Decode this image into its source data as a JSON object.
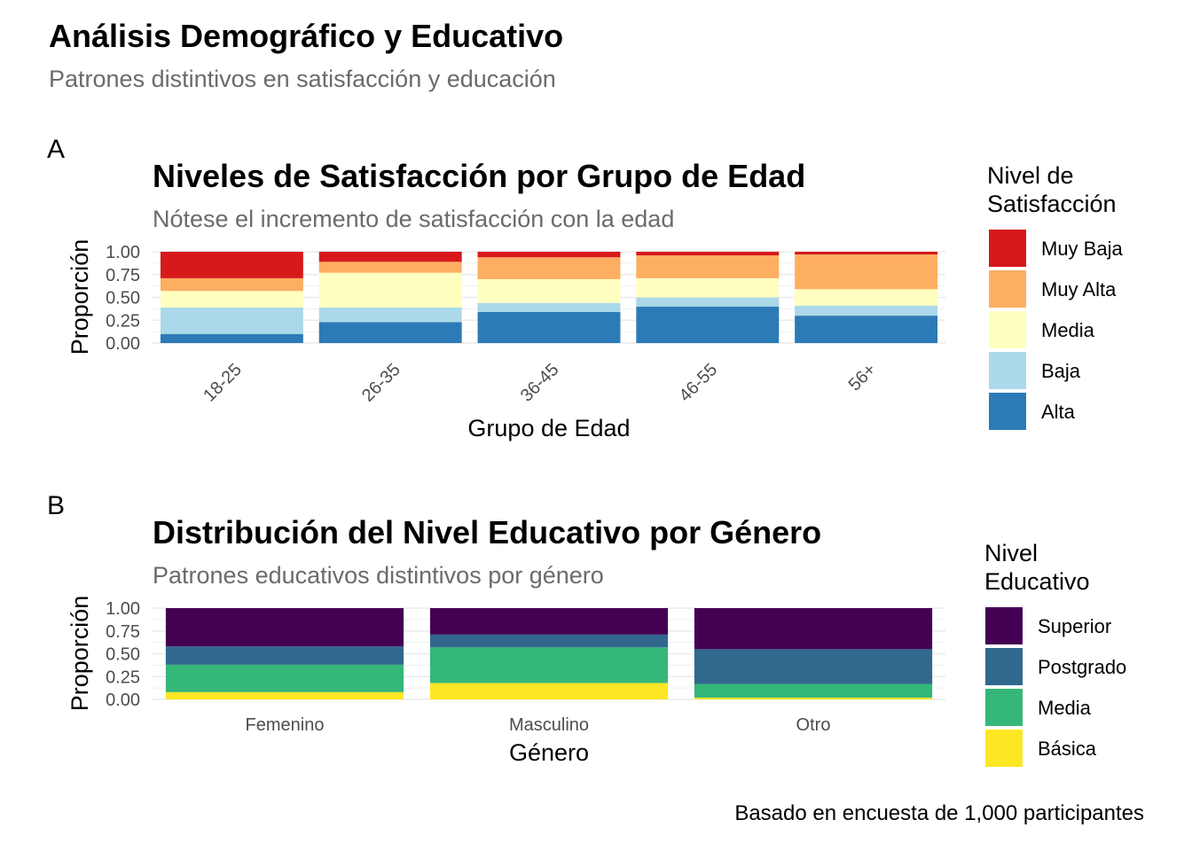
{
  "title": "Análisis Demográfico y Educativo",
  "subtitle": "Patrones distintivos en satisfacción y educación",
  "caption": "Basado en encuesta de 1,000 participantes",
  "chart_data": [
    {
      "type": "bar",
      "stacked": true,
      "tag": "A",
      "title": "Niveles de Satisfacción por Grupo de Edad",
      "subtitle": "Nótese el incremento de satisfacción con la edad",
      "xlabel": "Grupo de Edad",
      "ylabel": "Proporción",
      "ylim": [
        0,
        1
      ],
      "yticks": [
        "0.00",
        "0.25",
        "0.50",
        "0.75",
        "1.00"
      ],
      "categories": [
        "18-25",
        "26-35",
        "36-45",
        "46-55",
        "56+"
      ],
      "legend_title": "Nivel de Satisfacción",
      "legend_position": "right",
      "series": [
        {
          "name": "Alta",
          "color": "#2c7bb6",
          "values": [
            0.1,
            0.23,
            0.34,
            0.4,
            0.3
          ]
        },
        {
          "name": "Baja",
          "color": "#abd9e9",
          "values": [
            0.29,
            0.16,
            0.1,
            0.1,
            0.11
          ]
        },
        {
          "name": "Media",
          "color": "#ffffbf",
          "values": [
            0.18,
            0.38,
            0.26,
            0.21,
            0.18
          ]
        },
        {
          "name": "Muy Alta",
          "color": "#fdae61",
          "values": [
            0.14,
            0.12,
            0.24,
            0.25,
            0.38
          ]
        },
        {
          "name": "Muy Baja",
          "color": "#d7191c",
          "values": [
            0.29,
            0.11,
            0.06,
            0.04,
            0.03
          ]
        }
      ]
    },
    {
      "type": "bar",
      "stacked": true,
      "tag": "B",
      "title": "Distribución del Nivel Educativo por Género",
      "subtitle": "Patrones educativos distintivos por género",
      "xlabel": "Género",
      "ylabel": "Proporción",
      "ylim": [
        0,
        1
      ],
      "yticks": [
        "0.00",
        "0.25",
        "0.50",
        "0.75",
        "1.00"
      ],
      "categories": [
        "Femenino",
        "Masculino",
        "Otro"
      ],
      "legend_title": "Nivel Educativo",
      "legend_position": "right",
      "series": [
        {
          "name": "Básica",
          "color": "#fde725",
          "values": [
            0.08,
            0.18,
            0.02
          ]
        },
        {
          "name": "Media",
          "color": "#35b779",
          "values": [
            0.3,
            0.39,
            0.15
          ]
        },
        {
          "name": "Postgrado",
          "color": "#31688e",
          "values": [
            0.2,
            0.14,
            0.38
          ]
        },
        {
          "name": "Superior",
          "color": "#440154",
          "values": [
            0.42,
            0.29,
            0.45
          ]
        }
      ]
    }
  ]
}
